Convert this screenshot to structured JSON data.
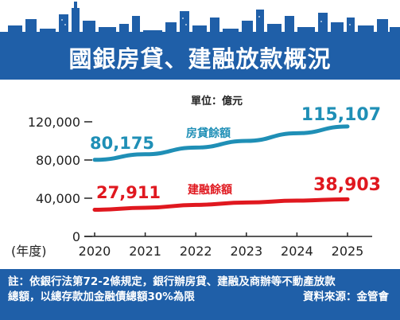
{
  "title": "國銀房貸、建融放款概況",
  "colors": {
    "header_blue": "#1f5fa8",
    "mortgage_line": "#1f8fb6",
    "construction_line": "#e0181f",
    "axis": "#222222"
  },
  "chart_data": {
    "type": "line",
    "unit_label": "單位：億元",
    "x_label": "(年度)",
    "categories": [
      "2020",
      "2021",
      "2022",
      "2023",
      "2024",
      "2025"
    ],
    "ylim": [
      0,
      120000
    ],
    "y_ticks": [
      "0",
      "40,000",
      "80,000",
      "120,000"
    ],
    "grid": false,
    "series": [
      {
        "name": "房貸餘額",
        "values": [
          80175,
          86000,
          93000,
          100000,
          108000,
          115107
        ],
        "color": "#1f8fb6",
        "start_label": "80,175",
        "end_label": "115,107"
      },
      {
        "name": "建融餘額",
        "values": [
          27911,
          30000,
          33000,
          35500,
          37500,
          38903
        ],
        "color": "#e0181f",
        "start_label": "27,911",
        "end_label": "38,903"
      }
    ]
  },
  "note": {
    "line1": "註：依銀行法第72-2條規定，銀行辦房貸、建融及商辦等不動產放款",
    "line2": "總額，以總存款加金融債總額30%為限",
    "source": "資料來源：金管會"
  }
}
